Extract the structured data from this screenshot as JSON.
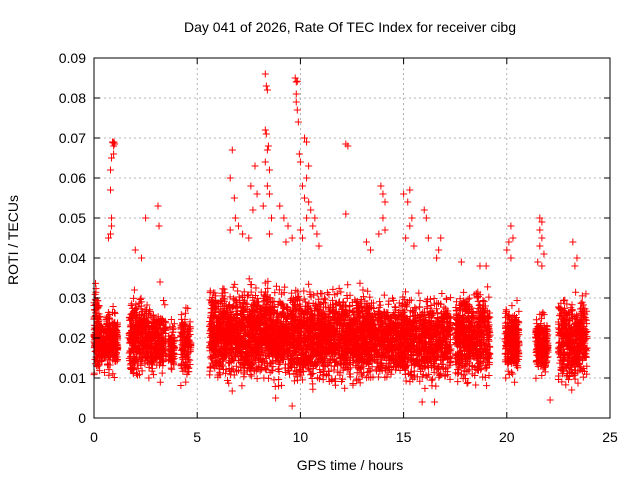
{
  "chart_data": {
    "type": "scatter",
    "title": "Day 041 of 2026, Rate Of TEC Index for receiver cibg",
    "xlabel": "GPS time / hours",
    "ylabel": "ROTI / TECUs",
    "xlim": [
      0,
      25
    ],
    "ylim": [
      0,
      0.09
    ],
    "x_ticks": [
      0,
      5,
      10,
      15,
      20,
      25
    ],
    "x_tick_labels": [
      "0",
      "5",
      "10",
      "15",
      "20",
      "25"
    ],
    "y_ticks": [
      0,
      0.01,
      0.02,
      0.03,
      0.04,
      0.05,
      0.06,
      0.07,
      0.08,
      0.09
    ],
    "y_tick_labels": [
      "0",
      "0.01",
      "0.02",
      "0.03",
      "0.04",
      "0.05",
      "0.06",
      "0.07",
      "0.08",
      "0.09"
    ],
    "grid": true,
    "marker": "+",
    "point_color": "#ff0000",
    "clusters": [
      {
        "x_range": [
          0.0,
          0.3
        ],
        "y_range": [
          0.008,
          0.035
        ],
        "count": 140
      },
      {
        "x_range": [
          0.15,
          0.55
        ],
        "y_range": [
          0.01,
          0.026
        ],
        "count": 90
      },
      {
        "x_range": [
          0.55,
          1.15
        ],
        "y_range": [
          0.009,
          0.03
        ],
        "count": 200
      },
      {
        "x_range": [
          1.7,
          2.6
        ],
        "y_range": [
          0.008,
          0.033
        ],
        "count": 300
      },
      {
        "x_range": [
          2.6,
          3.5
        ],
        "y_range": [
          0.008,
          0.03
        ],
        "count": 260
      },
      {
        "x_range": [
          3.6,
          3.9
        ],
        "y_range": [
          0.01,
          0.026
        ],
        "count": 80
      },
      {
        "x_range": [
          4.2,
          4.7
        ],
        "y_range": [
          0.007,
          0.03
        ],
        "count": 130
      },
      {
        "x_range": [
          5.6,
          9.0
        ],
        "y_range": [
          0.006,
          0.036
        ],
        "count": 1300
      },
      {
        "x_range": [
          9.0,
          13.5
        ],
        "y_range": [
          0.006,
          0.035
        ],
        "count": 1700
      },
      {
        "x_range": [
          13.5,
          15.0
        ],
        "y_range": [
          0.007,
          0.033
        ],
        "count": 500
      },
      {
        "x_range": [
          15.0,
          17.3
        ],
        "y_range": [
          0.006,
          0.033
        ],
        "count": 750
      },
      {
        "x_range": [
          17.5,
          19.2
        ],
        "y_range": [
          0.006,
          0.035
        ],
        "count": 600
      },
      {
        "x_range": [
          19.9,
          20.6
        ],
        "y_range": [
          0.008,
          0.03
        ],
        "count": 260
      },
      {
        "x_range": [
          21.4,
          22.0
        ],
        "y_range": [
          0.009,
          0.028
        ],
        "count": 200
      },
      {
        "x_range": [
          22.5,
          23.9
        ],
        "y_range": [
          0.005,
          0.034
        ],
        "count": 450
      }
    ],
    "outliers": [
      [
        0.9,
        0.069
      ],
      [
        0.95,
        0.068
      ],
      [
        1.0,
        0.0685
      ],
      [
        0.92,
        0.0688
      ],
      [
        0.97,
        0.069
      ],
      [
        0.85,
        0.065
      ],
      [
        0.95,
        0.066
      ],
      [
        0.8,
        0.062
      ],
      [
        0.8,
        0.057
      ],
      [
        0.85,
        0.05
      ],
      [
        0.85,
        0.048
      ],
      [
        0.7,
        0.045
      ],
      [
        0.8,
        0.046
      ],
      [
        2.5,
        0.05
      ],
      [
        3.1,
        0.053
      ],
      [
        3.15,
        0.048
      ],
      [
        2.0,
        0.042
      ],
      [
        2.3,
        0.04
      ],
      [
        3.2,
        0.034
      ],
      [
        6.7,
        0.067
      ],
      [
        6.6,
        0.06
      ],
      [
        6.8,
        0.055
      ],
      [
        6.85,
        0.05
      ],
      [
        7.0,
        0.048
      ],
      [
        6.6,
        0.047
      ],
      [
        7.2,
        0.046
      ],
      [
        7.8,
        0.063
      ],
      [
        7.6,
        0.058
      ],
      [
        7.9,
        0.056
      ],
      [
        7.7,
        0.052
      ],
      [
        7.5,
        0.045
      ],
      [
        8.3,
        0.086
      ],
      [
        8.35,
        0.083
      ],
      [
        8.4,
        0.082
      ],
      [
        8.3,
        0.072
      ],
      [
        8.35,
        0.071
      ],
      [
        8.4,
        0.067
      ],
      [
        8.45,
        0.068
      ],
      [
        8.3,
        0.064
      ],
      [
        8.5,
        0.062
      ],
      [
        8.4,
        0.058
      ],
      [
        8.5,
        0.056
      ],
      [
        8.2,
        0.053
      ],
      [
        8.6,
        0.05
      ],
      [
        8.5,
        0.046
      ],
      [
        9.0,
        0.053
      ],
      [
        9.2,
        0.05
      ],
      [
        9.4,
        0.048
      ],
      [
        9.6,
        0.045
      ],
      [
        9.3,
        0.044
      ],
      [
        9.75,
        0.085
      ],
      [
        9.8,
        0.084
      ],
      [
        9.85,
        0.0842
      ],
      [
        9.8,
        0.081
      ],
      [
        9.8,
        0.079
      ],
      [
        9.85,
        0.077
      ],
      [
        9.9,
        0.074
      ],
      [
        9.95,
        0.066
      ],
      [
        10.0,
        0.064
      ],
      [
        10.2,
        0.07
      ],
      [
        10.3,
        0.069
      ],
      [
        10.4,
        0.063
      ],
      [
        10.3,
        0.06
      ],
      [
        10.1,
        0.058
      ],
      [
        10.2,
        0.055
      ],
      [
        10.4,
        0.054
      ],
      [
        10.5,
        0.052
      ],
      [
        10.3,
        0.05
      ],
      [
        10.7,
        0.05
      ],
      [
        10.6,
        0.048
      ],
      [
        10.8,
        0.046
      ],
      [
        10.0,
        0.047
      ],
      [
        10.1,
        0.045
      ],
      [
        10.9,
        0.043
      ],
      [
        12.2,
        0.0685
      ],
      [
        12.3,
        0.068
      ],
      [
        12.2,
        0.051
      ],
      [
        13.2,
        0.044
      ],
      [
        13.4,
        0.042
      ],
      [
        13.9,
        0.058
      ],
      [
        14.0,
        0.056
      ],
      [
        14.1,
        0.054
      ],
      [
        14.0,
        0.05
      ],
      [
        14.1,
        0.047
      ],
      [
        13.8,
        0.046
      ],
      [
        15.0,
        0.056
      ],
      [
        15.3,
        0.057
      ],
      [
        15.2,
        0.054
      ],
      [
        15.4,
        0.05
      ],
      [
        15.3,
        0.048
      ],
      [
        15.1,
        0.045
      ],
      [
        15.5,
        0.043
      ],
      [
        16.0,
        0.052
      ],
      [
        16.1,
        0.05
      ],
      [
        16.2,
        0.045
      ],
      [
        16.8,
        0.045
      ],
      [
        16.7,
        0.042
      ],
      [
        16.6,
        0.04
      ],
      [
        17.8,
        0.039
      ],
      [
        18.7,
        0.038
      ],
      [
        19.0,
        0.038
      ],
      [
        20.2,
        0.048
      ],
      [
        20.3,
        0.045
      ],
      [
        20.1,
        0.044
      ],
      [
        20.0,
        0.042
      ],
      [
        20.2,
        0.04
      ],
      [
        21.6,
        0.05
      ],
      [
        21.7,
        0.049
      ],
      [
        21.6,
        0.047
      ],
      [
        21.7,
        0.045
      ],
      [
        21.6,
        0.043
      ],
      [
        21.8,
        0.041
      ],
      [
        21.5,
        0.039
      ],
      [
        21.7,
        0.038
      ],
      [
        23.2,
        0.044
      ],
      [
        23.4,
        0.04
      ],
      [
        23.3,
        0.038
      ],
      [
        22.6,
        0.026
      ],
      [
        22.5,
        0.024
      ],
      [
        22.7,
        0.023
      ],
      [
        9.6,
        0.003
      ],
      [
        22.1,
        0.0045
      ],
      [
        16.5,
        0.004
      ],
      [
        15.9,
        0.004
      ],
      [
        8.8,
        0.005
      ]
    ]
  }
}
